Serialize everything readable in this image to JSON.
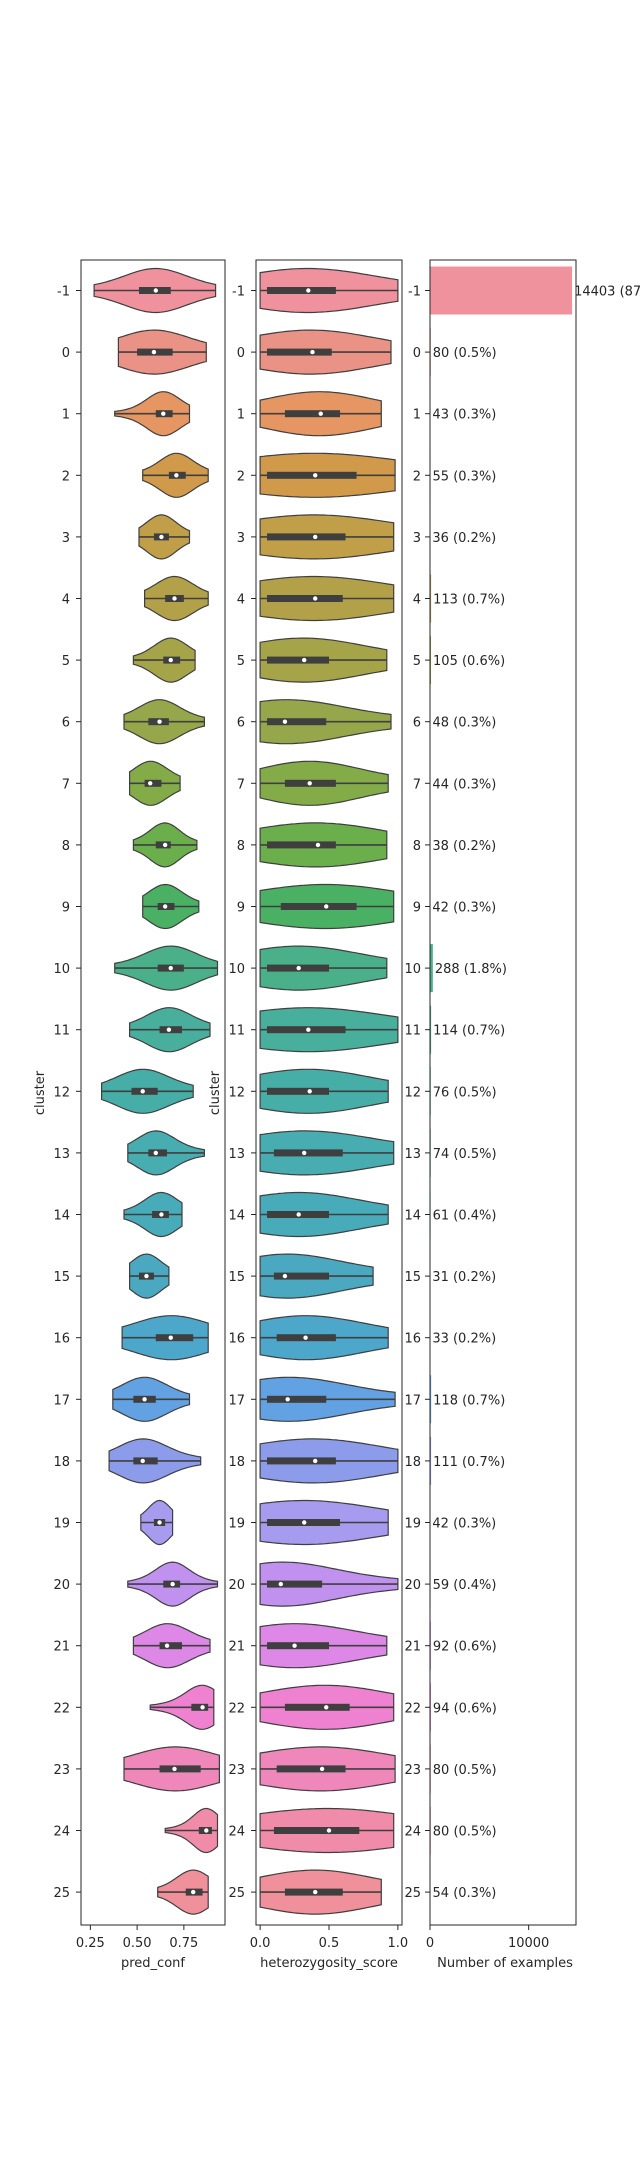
{
  "chart_data": [
    {
      "type": "violin",
      "orientation": "horizontal",
      "xlabel": "pred_conf",
      "ylabel": "cluster",
      "xlim": [
        0.2,
        0.97
      ],
      "xticks": [
        0.25,
        0.5,
        0.75
      ],
      "xtick_labels": [
        "0.25",
        "0.50",
        "0.75"
      ],
      "cut": 0,
      "categories": [
        "-1",
        "0",
        "1",
        "2",
        "3",
        "4",
        "5",
        "6",
        "7",
        "8",
        "9",
        "10",
        "11",
        "12",
        "13",
        "14",
        "15",
        "16",
        "17",
        "18",
        "19",
        "20",
        "21",
        "22",
        "23",
        "24",
        "25"
      ],
      "series": [
        {
          "q1": 0.51,
          "median": 0.6,
          "q3": 0.68,
          "min": 0.27,
          "max": 0.92
        },
        {
          "q1": 0.5,
          "median": 0.59,
          "q3": 0.69,
          "min": 0.4,
          "max": 0.87
        },
        {
          "q1": 0.6,
          "median": 0.64,
          "q3": 0.69,
          "min": 0.38,
          "max": 0.78
        },
        {
          "q1": 0.67,
          "median": 0.71,
          "q3": 0.76,
          "min": 0.53,
          "max": 0.88
        },
        {
          "q1": 0.59,
          "median": 0.63,
          "q3": 0.67,
          "min": 0.51,
          "max": 0.78
        },
        {
          "q1": 0.65,
          "median": 0.7,
          "q3": 0.75,
          "min": 0.54,
          "max": 0.88
        },
        {
          "q1": 0.64,
          "median": 0.68,
          "q3": 0.73,
          "min": 0.48,
          "max": 0.81
        },
        {
          "q1": 0.56,
          "median": 0.62,
          "q3": 0.67,
          "min": 0.43,
          "max": 0.86
        },
        {
          "q1": 0.54,
          "median": 0.57,
          "q3": 0.63,
          "min": 0.46,
          "max": 0.73
        },
        {
          "q1": 0.6,
          "median": 0.65,
          "q3": 0.68,
          "min": 0.48,
          "max": 0.82
        },
        {
          "q1": 0.61,
          "median": 0.65,
          "q3": 0.7,
          "min": 0.53,
          "max": 0.83
        },
        {
          "q1": 0.61,
          "median": 0.68,
          "q3": 0.75,
          "min": 0.38,
          "max": 0.93
        },
        {
          "q1": 0.62,
          "median": 0.67,
          "q3": 0.74,
          "min": 0.46,
          "max": 0.89
        },
        {
          "q1": 0.47,
          "median": 0.53,
          "q3": 0.61,
          "min": 0.31,
          "max": 0.8
        },
        {
          "q1": 0.56,
          "median": 0.6,
          "q3": 0.66,
          "min": 0.45,
          "max": 0.86
        },
        {
          "q1": 0.58,
          "median": 0.63,
          "q3": 0.67,
          "min": 0.43,
          "max": 0.74
        },
        {
          "q1": 0.51,
          "median": 0.55,
          "q3": 0.59,
          "min": 0.46,
          "max": 0.67
        },
        {
          "q1": 0.6,
          "median": 0.68,
          "q3": 0.8,
          "min": 0.42,
          "max": 0.88
        },
        {
          "q1": 0.48,
          "median": 0.54,
          "q3": 0.6,
          "min": 0.37,
          "max": 0.78
        },
        {
          "q1": 0.48,
          "median": 0.53,
          "q3": 0.61,
          "min": 0.35,
          "max": 0.84
        },
        {
          "q1": 0.59,
          "median": 0.62,
          "q3": 0.65,
          "min": 0.52,
          "max": 0.69
        },
        {
          "q1": 0.64,
          "median": 0.69,
          "q3": 0.73,
          "min": 0.45,
          "max": 0.93
        },
        {
          "q1": 0.62,
          "median": 0.66,
          "q3": 0.74,
          "min": 0.48,
          "max": 0.89
        },
        {
          "q1": 0.79,
          "median": 0.85,
          "q3": 0.88,
          "min": 0.57,
          "max": 0.91
        },
        {
          "q1": 0.62,
          "median": 0.7,
          "q3": 0.84,
          "min": 0.43,
          "max": 0.94
        },
        {
          "q1": 0.83,
          "median": 0.87,
          "q3": 0.9,
          "min": 0.65,
          "max": 0.93
        },
        {
          "q1": 0.76,
          "median": 0.8,
          "q3": 0.85,
          "min": 0.61,
          "max": 0.88
        }
      ]
    },
    {
      "type": "violin",
      "orientation": "horizontal",
      "xlabel": "heterozygosity_score",
      "ylabel": "cluster",
      "xlim": [
        -0.03,
        1.03
      ],
      "xticks": [
        0.0,
        0.5,
        1.0
      ],
      "xtick_labels": [
        "0.0",
        "0.5",
        "1.0"
      ],
      "cut": 0,
      "categories": [
        "-1",
        "0",
        "1",
        "2",
        "3",
        "4",
        "5",
        "6",
        "7",
        "8",
        "9",
        "10",
        "11",
        "12",
        "13",
        "14",
        "15",
        "16",
        "17",
        "18",
        "19",
        "20",
        "21",
        "22",
        "23",
        "24",
        "25"
      ],
      "series": [
        {
          "q1": 0.05,
          "median": 0.35,
          "q3": 0.55,
          "min": 0.0,
          "max": 1.0
        },
        {
          "q1": 0.05,
          "median": 0.38,
          "q3": 0.52,
          "min": 0.0,
          "max": 0.95
        },
        {
          "q1": 0.18,
          "median": 0.44,
          "q3": 0.58,
          "min": 0.0,
          "max": 0.88
        },
        {
          "q1": 0.05,
          "median": 0.4,
          "q3": 0.7,
          "min": 0.0,
          "max": 0.98
        },
        {
          "q1": 0.05,
          "median": 0.4,
          "q3": 0.62,
          "min": 0.0,
          "max": 0.97
        },
        {
          "q1": 0.05,
          "median": 0.4,
          "q3": 0.6,
          "min": 0.0,
          "max": 0.97
        },
        {
          "q1": 0.05,
          "median": 0.32,
          "q3": 0.5,
          "min": 0.0,
          "max": 0.92
        },
        {
          "q1": 0.05,
          "median": 0.18,
          "q3": 0.48,
          "min": 0.0,
          "max": 0.95
        },
        {
          "q1": 0.18,
          "median": 0.36,
          "q3": 0.55,
          "min": 0.0,
          "max": 0.93
        },
        {
          "q1": 0.05,
          "median": 0.42,
          "q3": 0.55,
          "min": 0.0,
          "max": 0.92
        },
        {
          "q1": 0.15,
          "median": 0.48,
          "q3": 0.7,
          "min": 0.0,
          "max": 0.97
        },
        {
          "q1": 0.05,
          "median": 0.28,
          "q3": 0.5,
          "min": 0.0,
          "max": 0.92
        },
        {
          "q1": 0.05,
          "median": 0.35,
          "q3": 0.62,
          "min": 0.0,
          "max": 1.0
        },
        {
          "q1": 0.05,
          "median": 0.36,
          "q3": 0.5,
          "min": 0.0,
          "max": 0.93
        },
        {
          "q1": 0.1,
          "median": 0.32,
          "q3": 0.6,
          "min": 0.0,
          "max": 0.97
        },
        {
          "q1": 0.05,
          "median": 0.28,
          "q3": 0.5,
          "min": 0.0,
          "max": 0.93
        },
        {
          "q1": 0.1,
          "median": 0.18,
          "q3": 0.5,
          "min": 0.0,
          "max": 0.82
        },
        {
          "q1": 0.12,
          "median": 0.33,
          "q3": 0.55,
          "min": 0.0,
          "max": 0.93
        },
        {
          "q1": 0.05,
          "median": 0.2,
          "q3": 0.48,
          "min": 0.0,
          "max": 0.98
        },
        {
          "q1": 0.05,
          "median": 0.4,
          "q3": 0.55,
          "min": 0.0,
          "max": 1.0
        },
        {
          "q1": 0.05,
          "median": 0.32,
          "q3": 0.58,
          "min": 0.0,
          "max": 0.93
        },
        {
          "q1": 0.05,
          "median": 0.15,
          "q3": 0.45,
          "min": 0.0,
          "max": 1.0
        },
        {
          "q1": 0.05,
          "median": 0.25,
          "q3": 0.5,
          "min": 0.0,
          "max": 0.92
        },
        {
          "q1": 0.18,
          "median": 0.48,
          "q3": 0.65,
          "min": 0.0,
          "max": 0.97
        },
        {
          "q1": 0.12,
          "median": 0.45,
          "q3": 0.62,
          "min": 0.0,
          "max": 0.98
        },
        {
          "q1": 0.1,
          "median": 0.5,
          "q3": 0.72,
          "min": 0.0,
          "max": 0.97
        },
        {
          "q1": 0.18,
          "median": 0.4,
          "q3": 0.6,
          "min": 0.0,
          "max": 0.88
        }
      ]
    },
    {
      "type": "bar",
      "orientation": "horizontal",
      "xlabel": "Number of examples",
      "ylabel": "",
      "xlim": [
        0,
        14800
      ],
      "xticks": [
        0,
        10000
      ],
      "xtick_labels": [
        "0",
        "10000"
      ],
      "categories": [
        "-1",
        "0",
        "1",
        "2",
        "3",
        "4",
        "5",
        "6",
        "7",
        "8",
        "9",
        "10",
        "11",
        "12",
        "13",
        "14",
        "15",
        "16",
        "17",
        "18",
        "19",
        "20",
        "21",
        "22",
        "23",
        "24",
        "25"
      ],
      "values": [
        14403,
        80,
        43,
        55,
        36,
        113,
        105,
        48,
        44,
        38,
        42,
        288,
        114,
        76,
        74,
        61,
        31,
        33,
        118,
        111,
        42,
        59,
        92,
        94,
        80,
        80,
        54
      ],
      "labels": [
        "14403 (87",
        "80 (0.5%)",
        "43 (0.3%)",
        "55 (0.3%)",
        "36 (0.2%)",
        "113 (0.7%)",
        "105 (0.6%)",
        "48 (0.3%)",
        "44 (0.3%)",
        "38 (0.2%)",
        "42 (0.3%)",
        "288 (1.8%)",
        "114 (0.7%)",
        "76 (0.5%)",
        "74 (0.5%)",
        "61 (0.4%)",
        "31 (0.2%)",
        "33 (0.2%)",
        "118 (0.7%)",
        "111 (0.7%)",
        "42 (0.3%)",
        "59 (0.4%)",
        "92 (0.6%)",
        "94 (0.6%)",
        "80 (0.5%)",
        "80 (0.5%)",
        "54 (0.3%)"
      ]
    }
  ],
  "colors": [
    "#f0919e",
    "#ea9285",
    "#e59662",
    "#d19a4b",
    "#c19f49",
    "#b3a149",
    "#a6a449",
    "#95a74a",
    "#83ac49",
    "#6aaf4b",
    "#4ab063",
    "#4ab08a",
    "#48af9c",
    "#47aea7",
    "#47adb1",
    "#48abb9",
    "#4aa9c1",
    "#4da7cb",
    "#62a1e2",
    "#8c9ceb",
    "#a79bef",
    "#c191ef",
    "#dd87e6",
    "#ee82d0",
    "#ef87bb",
    "#f08caa",
    "#f0909a"
  ]
}
